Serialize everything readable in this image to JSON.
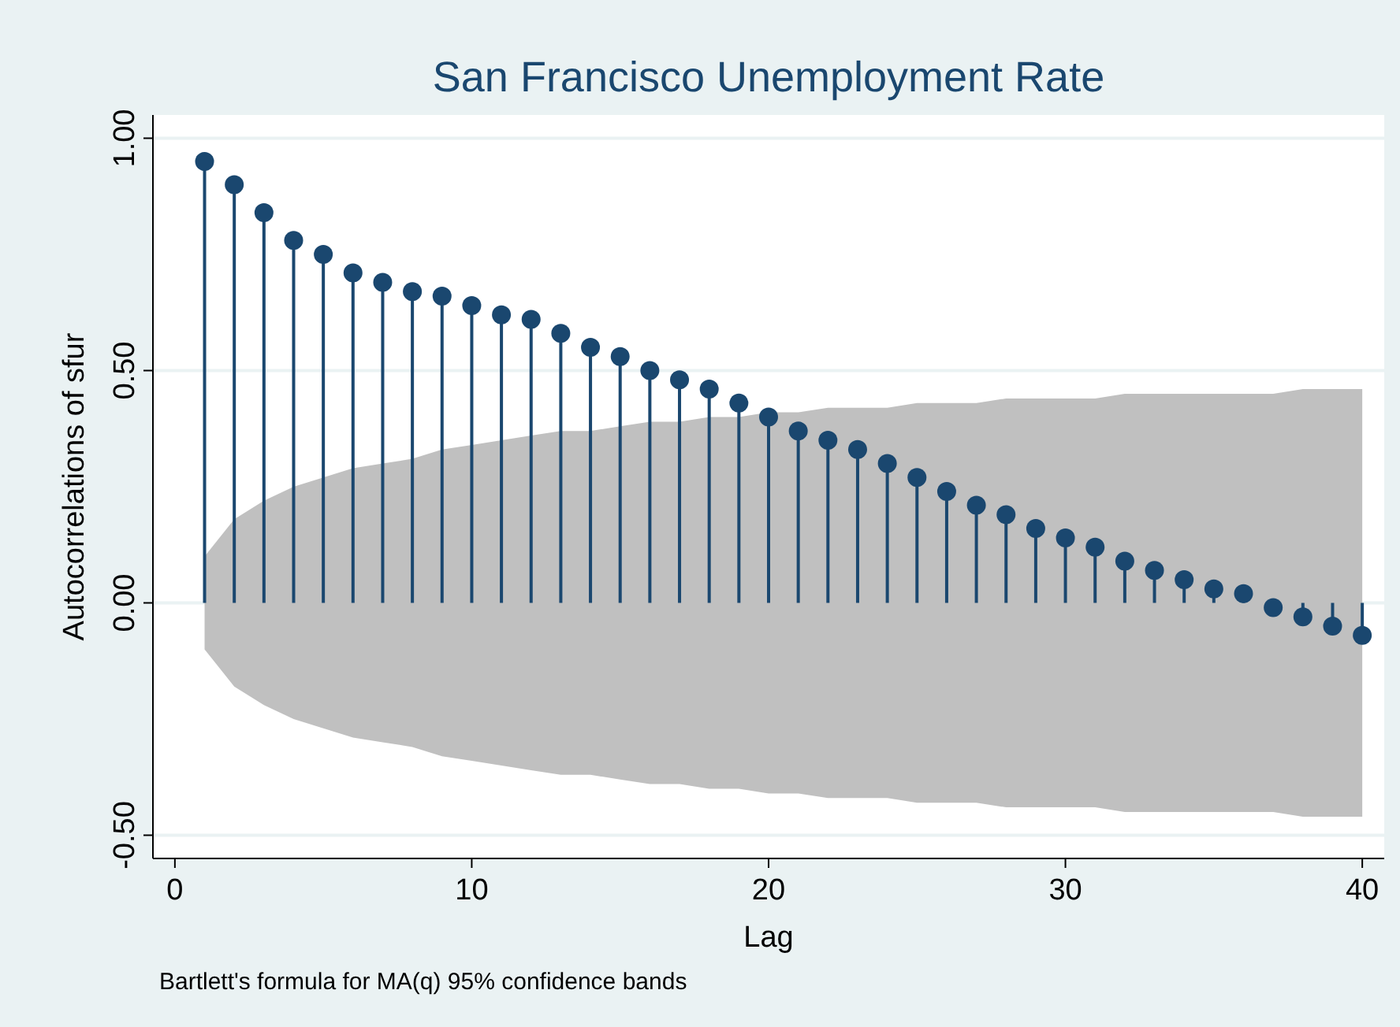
{
  "chart_data": {
    "type": "lollipop",
    "title": "San Francisco Unemployment Rate",
    "xlabel": "Lag",
    "ylabel": "Autocorrelations of sfur",
    "x": [
      1,
      2,
      3,
      4,
      5,
      6,
      7,
      8,
      9,
      10,
      11,
      12,
      13,
      14,
      15,
      16,
      17,
      18,
      19,
      20,
      21,
      22,
      23,
      24,
      25,
      26,
      27,
      28,
      29,
      30,
      31,
      32,
      33,
      34,
      35,
      36,
      37,
      38,
      39,
      40
    ],
    "series": [
      {
        "color": "#1a476f",
        "values": [
          0.95,
          0.9,
          0.84,
          0.78,
          0.75,
          0.71,
          0.69,
          0.67,
          0.66,
          0.64,
          0.62,
          0.61,
          0.58,
          0.55,
          0.53,
          0.5,
          0.48,
          0.46,
          0.43,
          0.4,
          0.37,
          0.35,
          0.33,
          0.3,
          0.27,
          0.24,
          0.21,
          0.19,
          0.16,
          0.14,
          0.12,
          0.09,
          0.07,
          0.05,
          0.03,
          0.02,
          -0.01,
          -0.03,
          -0.05,
          -0.07
        ],
        "upper": [
          0.1,
          0.18,
          0.22,
          0.25,
          0.27,
          0.29,
          0.3,
          0.31,
          0.33,
          0.34,
          0.35,
          0.36,
          0.37,
          0.37,
          0.38,
          0.39,
          0.39,
          0.4,
          0.4,
          0.41,
          0.41,
          0.42,
          0.42,
          0.42,
          0.43,
          0.43,
          0.43,
          0.44,
          0.44,
          0.44,
          0.44,
          0.45,
          0.45,
          0.45,
          0.45,
          0.45,
          0.45,
          0.46,
          0.46,
          0.46
        ],
        "lower": [
          -0.1,
          -0.18,
          -0.22,
          -0.25,
          -0.27,
          -0.29,
          -0.3,
          -0.31,
          -0.33,
          -0.34,
          -0.35,
          -0.36,
          -0.37,
          -0.37,
          -0.38,
          -0.39,
          -0.39,
          -0.4,
          -0.4,
          -0.41,
          -0.41,
          -0.42,
          -0.42,
          -0.42,
          -0.43,
          -0.43,
          -0.43,
          -0.44,
          -0.44,
          -0.44,
          -0.44,
          -0.45,
          -0.45,
          -0.45,
          -0.45,
          -0.45,
          -0.45,
          -0.46,
          -0.46,
          -0.46
        ]
      }
    ],
    "xlim": [
      -0.74,
      40.74
    ],
    "ylim": [
      -0.55,
      1.05
    ],
    "xticks": [
      0,
      10,
      20,
      30,
      40
    ],
    "yticks": [
      {
        "value": -0.5,
        "label": "-0.50"
      },
      {
        "value": 0,
        "label": "0.00"
      },
      {
        "value": 0.5,
        "label": "0.50"
      },
      {
        "value": 1,
        "label": "1.00"
      }
    ],
    "grid": "y",
    "marker": "circle",
    "annotations": [
      "Bartlett's formula for MA(q) 95% confidence bands"
    ]
  }
}
